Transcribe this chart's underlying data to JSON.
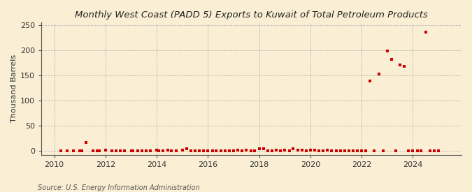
{
  "title": "Monthly West Coast (PADD 5) Exports to Kuwait of Total Petroleum Products",
  "ylabel": "Thousand Barrels",
  "source": "Source: U.S. Energy Information Administration",
  "background_color": "#faefd4",
  "plot_bg_color": "#faefd4",
  "marker_color": "#cc0000",
  "marker_size": 3.5,
  "ylim": [
    -8,
    255
  ],
  "yticks": [
    0,
    50,
    100,
    150,
    200,
    250
  ],
  "xlim": [
    2009.5,
    2025.9
  ],
  "xticks": [
    2010,
    2012,
    2014,
    2016,
    2018,
    2020,
    2022,
    2024
  ],
  "data_points": [
    [
      2010.25,
      0
    ],
    [
      2010.5,
      0
    ],
    [
      2010.75,
      0
    ],
    [
      2011.0,
      0
    ],
    [
      2011.08,
      0
    ],
    [
      2011.25,
      16
    ],
    [
      2011.5,
      0
    ],
    [
      2011.67,
      0
    ],
    [
      2011.75,
      0
    ],
    [
      2012.0,
      2
    ],
    [
      2012.25,
      0
    ],
    [
      2012.42,
      0
    ],
    [
      2012.58,
      0
    ],
    [
      2012.75,
      0
    ],
    [
      2013.0,
      0
    ],
    [
      2013.08,
      0
    ],
    [
      2013.25,
      0
    ],
    [
      2013.42,
      0
    ],
    [
      2013.58,
      0
    ],
    [
      2013.75,
      0
    ],
    [
      2014.0,
      2
    ],
    [
      2014.08,
      0
    ],
    [
      2014.25,
      0
    ],
    [
      2014.42,
      2
    ],
    [
      2014.58,
      0
    ],
    [
      2014.75,
      0
    ],
    [
      2015.0,
      2
    ],
    [
      2015.17,
      4
    ],
    [
      2015.33,
      0
    ],
    [
      2015.5,
      0
    ],
    [
      2015.67,
      0
    ],
    [
      2015.83,
      0
    ],
    [
      2016.0,
      0
    ],
    [
      2016.17,
      0
    ],
    [
      2016.33,
      0
    ],
    [
      2016.5,
      0
    ],
    [
      2016.67,
      0
    ],
    [
      2016.83,
      0
    ],
    [
      2017.0,
      0
    ],
    [
      2017.17,
      2
    ],
    [
      2017.33,
      0
    ],
    [
      2017.5,
      2
    ],
    [
      2017.67,
      0
    ],
    [
      2017.83,
      0
    ],
    [
      2018.0,
      4
    ],
    [
      2018.17,
      4
    ],
    [
      2018.33,
      0
    ],
    [
      2018.5,
      0
    ],
    [
      2018.67,
      2
    ],
    [
      2018.83,
      0
    ],
    [
      2019.0,
      2
    ],
    [
      2019.17,
      0
    ],
    [
      2019.33,
      4
    ],
    [
      2019.5,
      2
    ],
    [
      2019.67,
      2
    ],
    [
      2019.83,
      0
    ],
    [
      2020.0,
      2
    ],
    [
      2020.17,
      2
    ],
    [
      2020.33,
      0
    ],
    [
      2020.5,
      0
    ],
    [
      2020.67,
      2
    ],
    [
      2020.83,
      0
    ],
    [
      2021.0,
      0
    ],
    [
      2021.17,
      0
    ],
    [
      2021.33,
      0
    ],
    [
      2021.5,
      0
    ],
    [
      2021.67,
      0
    ],
    [
      2021.83,
      0
    ],
    [
      2022.0,
      0
    ],
    [
      2022.17,
      0
    ],
    [
      2022.33,
      138
    ],
    [
      2022.5,
      0
    ],
    [
      2022.67,
      152
    ],
    [
      2022.83,
      0
    ],
    [
      2023.0,
      198
    ],
    [
      2023.17,
      182
    ],
    [
      2023.33,
      0
    ],
    [
      2023.5,
      170
    ],
    [
      2023.67,
      168
    ],
    [
      2023.83,
      0
    ],
    [
      2024.0,
      0
    ],
    [
      2024.17,
      0
    ],
    [
      2024.33,
      0
    ],
    [
      2024.5,
      236
    ],
    [
      2024.67,
      0
    ],
    [
      2024.83,
      0
    ],
    [
      2025.0,
      0
    ]
  ]
}
